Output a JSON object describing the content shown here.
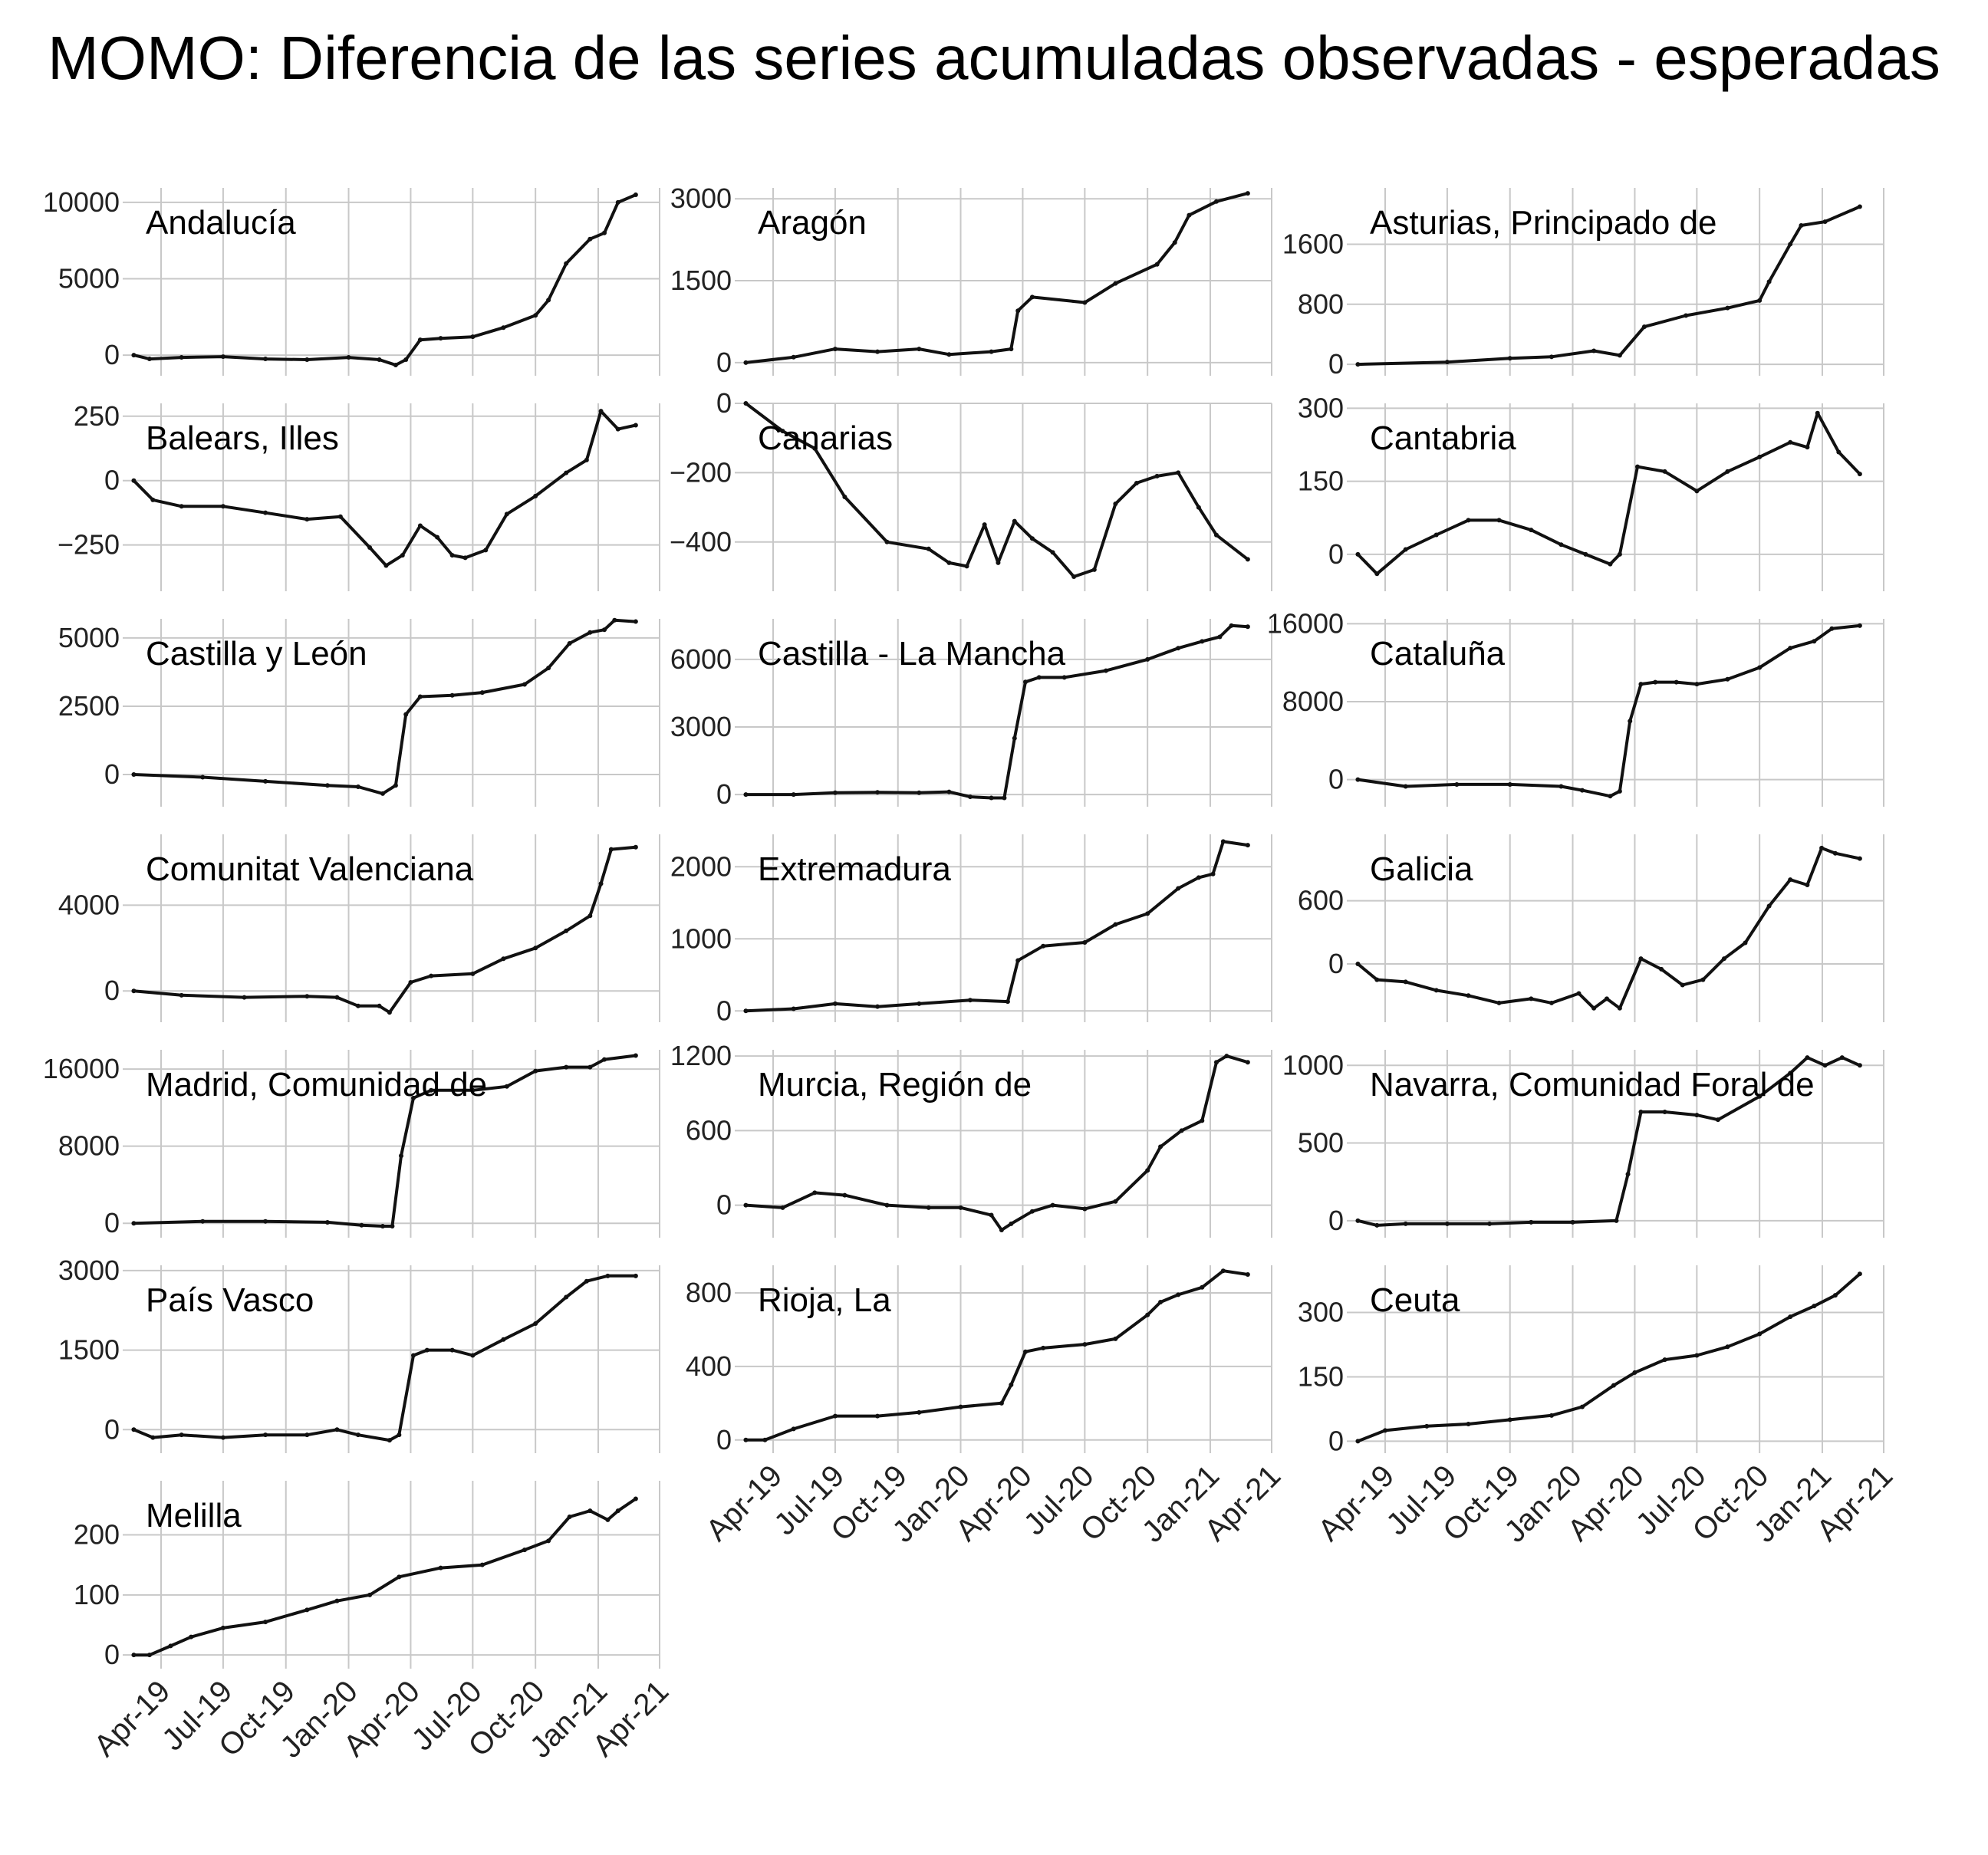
{
  "title": "MOMO: Diferencia de las series acumuladas observadas - esperadas",
  "chart_data": {
    "type": "line",
    "title": "MOMO: Diferencia de las series acumuladas observadas - esperadas",
    "layout": "facet 3 columns x 7 rows, free y scales",
    "grid": true,
    "line_color": "#111111",
    "x_ticks": [
      "Apr-19",
      "Jul-19",
      "Oct-19",
      "Jan-20",
      "Apr-20",
      "Jul-20",
      "Oct-20",
      "Jan-21",
      "Apr-21"
    ],
    "x_range": [
      "2019-02-15",
      "2021-04-01"
    ],
    "panels": [
      {
        "name": "Andalucía",
        "yticks": [
          0,
          5000,
          10000
        ],
        "ylim": [
          -850,
          10950
        ],
        "x": [
          "2019-02-20",
          "2019-03-15",
          "2019-05-01",
          "2019-07-01",
          "2019-09-01",
          "2019-11-01",
          "2020-01-01",
          "2020-02-15",
          "2020-03-10",
          "2020-03-25",
          "2020-04-15",
          "2020-05-15",
          "2020-07-01",
          "2020-08-15",
          "2020-10-01",
          "2020-10-20",
          "2020-11-15",
          "2020-12-20",
          "2021-01-10",
          "2021-01-30",
          "2021-02-25"
        ],
        "y": [
          0,
          -250,
          -150,
          -100,
          -250,
          -300,
          -150,
          -300,
          -650,
          -300,
          1000,
          1100,
          1200,
          1800,
          2600,
          3600,
          6000,
          7600,
          8000,
          10000,
          10500
        ]
      },
      {
        "name": "Aragón",
        "yticks": [
          0,
          1500,
          3000
        ],
        "ylim": [
          -100,
          3200
        ],
        "x": [
          "2019-02-20",
          "2019-05-01",
          "2019-07-01",
          "2019-09-01",
          "2019-11-01",
          "2019-12-15",
          "2020-02-15",
          "2020-03-15",
          "2020-03-25",
          "2020-04-15",
          "2020-07-01",
          "2020-08-15",
          "2020-10-15",
          "2020-11-10",
          "2020-12-01",
          "2021-01-10",
          "2021-02-25"
        ],
        "y": [
          0,
          100,
          250,
          200,
          250,
          150,
          200,
          250,
          950,
          1200,
          1100,
          1450,
          1800,
          2200,
          2700,
          2950,
          3100
        ]
      },
      {
        "name": "Asturias, Principado de",
        "yticks": [
          0,
          800,
          1600
        ],
        "ylim": [
          -50,
          2350
        ],
        "x": [
          "2019-02-20",
          "2019-07-01",
          "2019-10-01",
          "2019-12-01",
          "2020-02-01",
          "2020-03-10",
          "2020-04-15",
          "2020-06-15",
          "2020-08-15",
          "2020-10-01",
          "2020-10-15",
          "2020-11-15",
          "2020-12-01",
          "2021-01-05",
          "2021-02-25"
        ],
        "y": [
          0,
          30,
          80,
          100,
          180,
          120,
          500,
          650,
          750,
          850,
          1100,
          1600,
          1850,
          1900,
          2100
        ]
      },
      {
        "name": "Balears, Illes",
        "yticks": [
          -250,
          0,
          250
        ],
        "ylim": [
          -400,
          300
        ],
        "x": [
          "2019-02-20",
          "2019-03-20",
          "2019-05-01",
          "2019-07-01",
          "2019-09-01",
          "2019-11-01",
          "2019-12-20",
          "2020-02-01",
          "2020-02-25",
          "2020-03-20",
          "2020-04-15",
          "2020-05-10",
          "2020-06-01",
          "2020-06-20",
          "2020-07-20",
          "2020-08-20",
          "2020-10-01",
          "2020-11-15",
          "2020-12-15",
          "2021-01-05",
          "2021-01-30",
          "2021-02-25"
        ],
        "y": [
          0,
          -75,
          -100,
          -100,
          -125,
          -150,
          -140,
          -260,
          -330,
          -290,
          -175,
          -220,
          -290,
          -300,
          -270,
          -130,
          -60,
          30,
          80,
          270,
          200,
          215
        ]
      },
      {
        "name": "Canarias",
        "yticks": [
          -400,
          -200,
          0
        ],
        "ylim": [
          -520,
          0
        ],
        "x": [
          "2019-02-20",
          "2019-04-15",
          "2019-06-01",
          "2019-07-15",
          "2019-09-15",
          "2019-11-15",
          "2019-12-15",
          "2020-01-10",
          "2020-02-05",
          "2020-02-25",
          "2020-03-20",
          "2020-04-15",
          "2020-05-15",
          "2020-06-15",
          "2020-07-15",
          "2020-08-15",
          "2020-09-15",
          "2020-10-15",
          "2020-11-15",
          "2020-12-15",
          "2021-01-10",
          "2021-02-25"
        ],
        "y": [
          0,
          -80,
          -130,
          -270,
          -400,
          -420,
          -460,
          -470,
          -350,
          -460,
          -340,
          -390,
          -430,
          -500,
          -480,
          -290,
          -230,
          -210,
          -200,
          -300,
          -380,
          -450
        ]
      },
      {
        "name": "Cantabria",
        "yticks": [
          0,
          150,
          300
        ],
        "ylim": [
          -60,
          310
        ],
        "x": [
          "2019-02-20",
          "2019-03-20",
          "2019-05-01",
          "2019-06-15",
          "2019-08-01",
          "2019-09-15",
          "2019-11-01",
          "2019-12-15",
          "2020-01-20",
          "2020-02-25",
          "2020-03-10",
          "2020-04-05",
          "2020-05-15",
          "2020-07-01",
          "2020-08-15",
          "2020-10-01",
          "2020-11-15",
          "2020-12-10",
          "2020-12-25",
          "2021-01-25",
          "2021-02-25"
        ],
        "y": [
          0,
          -40,
          10,
          40,
          70,
          70,
          50,
          20,
          0,
          -20,
          0,
          180,
          170,
          130,
          170,
          200,
          230,
          220,
          290,
          210,
          165
        ]
      },
      {
        "name": "Castilla y León",
        "yticks": [
          0,
          2500,
          5000
        ],
        "ylim": [
          -900,
          5700
        ],
        "x": [
          "2019-02-20",
          "2019-06-01",
          "2019-09-01",
          "2019-12-01",
          "2020-01-15",
          "2020-02-20",
          "2020-03-10",
          "2020-03-25",
          "2020-04-15",
          "2020-06-01",
          "2020-07-15",
          "2020-09-15",
          "2020-10-20",
          "2020-11-20",
          "2020-12-20",
          "2021-01-10",
          "2021-01-25",
          "2021-02-25"
        ],
        "y": [
          0,
          -100,
          -250,
          -400,
          -450,
          -700,
          -400,
          2200,
          2850,
          2900,
          3000,
          3300,
          3900,
          4800,
          5200,
          5300,
          5650,
          5600
        ]
      },
      {
        "name": "Castilla - La Mancha",
        "yticks": [
          0,
          3000,
          6000
        ],
        "ylim": [
          -200,
          7800
        ],
        "x": [
          "2019-02-20",
          "2019-05-01",
          "2019-07-01",
          "2019-09-01",
          "2019-11-01",
          "2019-12-15",
          "2020-01-15",
          "2020-02-15",
          "2020-03-05",
          "2020-03-20",
          "2020-04-05",
          "2020-04-25",
          "2020-06-01",
          "2020-08-01",
          "2020-10-01",
          "2020-11-15",
          "2020-12-20",
          "2021-01-15",
          "2021-02-01",
          "2021-02-25"
        ],
        "y": [
          0,
          0,
          80,
          100,
          80,
          120,
          -100,
          -150,
          -150,
          2500,
          5000,
          5200,
          5200,
          5500,
          6000,
          6500,
          6800,
          7000,
          7500,
          7450
        ]
      },
      {
        "name": "Cataluña",
        "yticks": [
          0,
          8000,
          16000
        ],
        "ylim": [
          -2000,
          16500
        ],
        "x": [
          "2019-02-20",
          "2019-05-01",
          "2019-07-15",
          "2019-10-01",
          "2019-12-15",
          "2020-01-15",
          "2020-02-25",
          "2020-03-10",
          "2020-03-25",
          "2020-04-10",
          "2020-05-01",
          "2020-06-01",
          "2020-07-01",
          "2020-08-15",
          "2020-10-01",
          "2020-11-15",
          "2020-12-20",
          "2021-01-15",
          "2021-02-25"
        ],
        "y": [
          0,
          -700,
          -500,
          -500,
          -700,
          -1100,
          -1700,
          -1200,
          6000,
          9800,
          10000,
          10000,
          9800,
          10300,
          11500,
          13500,
          14200,
          15500,
          15800
        ]
      },
      {
        "name": "Comunitat Valenciana",
        "yticks": [
          0,
          4000
        ],
        "ylim": [
          -1100,
          7300
        ],
        "x": [
          "2019-02-20",
          "2019-05-01",
          "2019-08-01",
          "2019-11-01",
          "2019-12-15",
          "2020-01-15",
          "2020-02-15",
          "2020-03-01",
          "2020-04-01",
          "2020-05-01",
          "2020-07-01",
          "2020-08-15",
          "2020-10-01",
          "2020-11-15",
          "2020-12-20",
          "2021-01-05",
          "2021-01-20",
          "2021-02-25"
        ],
        "y": [
          0,
          -200,
          -300,
          -250,
          -300,
          -700,
          -700,
          -1000,
          400,
          700,
          800,
          1500,
          2000,
          2800,
          3500,
          5000,
          6600,
          6700
        ]
      },
      {
        "name": "Extremadura",
        "yticks": [
          0,
          1000,
          2000
        ],
        "ylim": [
          -50,
          2450
        ],
        "x": [
          "2019-02-20",
          "2019-05-01",
          "2019-07-01",
          "2019-09-01",
          "2019-11-01",
          "2020-01-15",
          "2020-03-10",
          "2020-03-25",
          "2020-05-01",
          "2020-07-01",
          "2020-08-15",
          "2020-10-01",
          "2020-11-15",
          "2020-12-15",
          "2021-01-05",
          "2021-01-20",
          "2021-02-25"
        ],
        "y": [
          0,
          30,
          100,
          60,
          100,
          150,
          130,
          700,
          900,
          950,
          1200,
          1350,
          1700,
          1850,
          1900,
          2350,
          2300
        ]
      },
      {
        "name": "Galicia",
        "yticks": [
          0,
          600
        ],
        "ylim": [
          -480,
          1230
        ],
        "x": [
          "2019-02-20",
          "2019-03-20",
          "2019-05-01",
          "2019-06-15",
          "2019-08-01",
          "2019-09-15",
          "2019-11-01",
          "2019-12-01",
          "2020-01-10",
          "2020-02-01",
          "2020-02-20",
          "2020-03-10",
          "2020-04-10",
          "2020-05-10",
          "2020-06-10",
          "2020-07-10",
          "2020-08-10",
          "2020-09-10",
          "2020-10-15",
          "2020-11-15",
          "2020-12-10",
          "2020-12-31",
          "2021-01-20",
          "2021-02-25"
        ],
        "y": [
          0,
          -150,
          -170,
          -250,
          -300,
          -370,
          -330,
          -370,
          -280,
          -420,
          -330,
          -420,
          50,
          -50,
          -200,
          -150,
          50,
          200,
          550,
          800,
          750,
          1100,
          1050,
          1000
        ]
      },
      {
        "name": "Madrid, Comunidad de",
        "yticks": [
          0,
          8000,
          16000
        ],
        "ylim": [
          -700,
          18000
        ],
        "x": [
          "2019-02-20",
          "2019-06-01",
          "2019-09-01",
          "2019-12-01",
          "2020-01-20",
          "2020-02-20",
          "2020-03-05",
          "2020-03-18",
          "2020-04-05",
          "2020-05-01",
          "2020-07-01",
          "2020-08-20",
          "2020-10-01",
          "2020-11-15",
          "2020-12-20",
          "2021-01-10",
          "2021-02-25"
        ],
        "y": [
          0,
          200,
          200,
          100,
          -200,
          -300,
          -300,
          7000,
          13000,
          13800,
          13800,
          14200,
          15800,
          16200,
          16200,
          17000,
          17400
        ]
      },
      {
        "name": "Murcia, Región de",
        "yticks": [
          0,
          600,
          1200
        ],
        "ylim": [
          -200,
          1250
        ],
        "x": [
          "2019-02-20",
          "2019-04-15",
          "2019-06-01",
          "2019-07-15",
          "2019-09-15",
          "2019-11-15",
          "2020-01-01",
          "2020-02-15",
          "2020-03-01",
          "2020-03-15",
          "2020-04-15",
          "2020-05-15",
          "2020-07-01",
          "2020-08-15",
          "2020-10-01",
          "2020-10-20",
          "2020-11-20",
          "2020-12-20",
          "2021-01-10",
          "2021-01-25",
          "2021-02-25"
        ],
        "y": [
          0,
          -20,
          100,
          80,
          0,
          -20,
          -20,
          -80,
          -200,
          -150,
          -50,
          0,
          -30,
          30,
          280,
          470,
          600,
          680,
          1150,
          1200,
          1150
        ]
      },
      {
        "name": "Navarra, Comunidad Foral de",
        "yticks": [
          0,
          500,
          1000
        ],
        "ylim": [
          -60,
          1100
        ],
        "x": [
          "2019-02-20",
          "2019-03-20",
          "2019-05-01",
          "2019-07-01",
          "2019-09-01",
          "2019-11-01",
          "2020-01-01",
          "2020-03-05",
          "2020-03-22",
          "2020-04-10",
          "2020-05-15",
          "2020-07-01",
          "2020-08-01",
          "2020-10-01",
          "2020-11-15",
          "2020-12-10",
          "2021-01-05",
          "2021-01-30",
          "2021-02-25"
        ],
        "y": [
          0,
          -30,
          -20,
          -20,
          -20,
          -10,
          -10,
          0,
          300,
          700,
          700,
          680,
          650,
          800,
          950,
          1050,
          1000,
          1050,
          1000
        ]
      },
      {
        "name": "País Vasco",
        "yticks": [
          0,
          1500,
          3000
        ],
        "ylim": [
          -300,
          3100
        ],
        "x": [
          "2019-02-20",
          "2019-03-20",
          "2019-05-01",
          "2019-07-01",
          "2019-09-01",
          "2019-11-01",
          "2019-12-15",
          "2020-01-15",
          "2020-03-01",
          "2020-03-15",
          "2020-04-05",
          "2020-04-25",
          "2020-06-01",
          "2020-07-01",
          "2020-08-15",
          "2020-10-01",
          "2020-11-15",
          "2020-12-15",
          "2021-01-15",
          "2021-02-25"
        ],
        "y": [
          0,
          -150,
          -100,
          -150,
          -100,
          -100,
          0,
          -100,
          -200,
          -100,
          1400,
          1500,
          1500,
          1400,
          1700,
          2000,
          2500,
          2800,
          2900,
          2900
        ]
      },
      {
        "name": "Rioja, La",
        "yticks": [
          0,
          400,
          800
        ],
        "ylim": [
          -30,
          950
        ],
        "x": [
          "2019-02-20",
          "2019-03-20",
          "2019-05-01",
          "2019-07-01",
          "2019-09-01",
          "2019-11-01",
          "2020-01-01",
          "2020-03-01",
          "2020-03-15",
          "2020-04-05",
          "2020-05-01",
          "2020-07-01",
          "2020-08-15",
          "2020-10-01",
          "2020-10-20",
          "2020-11-15",
          "2020-12-20",
          "2021-01-20",
          "2021-02-25"
        ],
        "y": [
          0,
          0,
          60,
          130,
          130,
          150,
          180,
          200,
          300,
          480,
          500,
          520,
          550,
          680,
          750,
          790,
          830,
          920,
          900
        ]
      },
      {
        "name": "Ceuta",
        "yticks": [
          0,
          150,
          300
        ],
        "ylim": [
          -10,
          410
        ],
        "x": [
          "2019-02-20",
          "2019-04-01",
          "2019-06-01",
          "2019-08-01",
          "2019-10-01",
          "2019-12-01",
          "2020-01-15",
          "2020-03-01",
          "2020-04-01",
          "2020-05-15",
          "2020-07-01",
          "2020-08-15",
          "2020-10-01",
          "2020-11-15",
          "2020-12-20",
          "2021-01-20",
          "2021-02-25"
        ],
        "y": [
          0,
          25,
          35,
          40,
          50,
          60,
          80,
          130,
          160,
          190,
          200,
          220,
          250,
          290,
          315,
          340,
          390
        ]
      },
      {
        "name": "Melilla",
        "yticks": [
          0,
          100,
          200
        ],
        "ylim": [
          -10,
          290
        ],
        "x": [
          "2019-02-20",
          "2019-03-15",
          "2019-04-15",
          "2019-05-15",
          "2019-07-01",
          "2019-09-01",
          "2019-11-01",
          "2019-12-15",
          "2020-02-01",
          "2020-03-15",
          "2020-05-15",
          "2020-07-15",
          "2020-09-15",
          "2020-10-20",
          "2020-11-20",
          "2020-12-20",
          "2021-01-15",
          "2021-01-30",
          "2021-02-25"
        ],
        "y": [
          0,
          0,
          15,
          30,
          45,
          55,
          75,
          90,
          100,
          130,
          145,
          150,
          175,
          190,
          230,
          240,
          225,
          240,
          260
        ]
      }
    ]
  }
}
